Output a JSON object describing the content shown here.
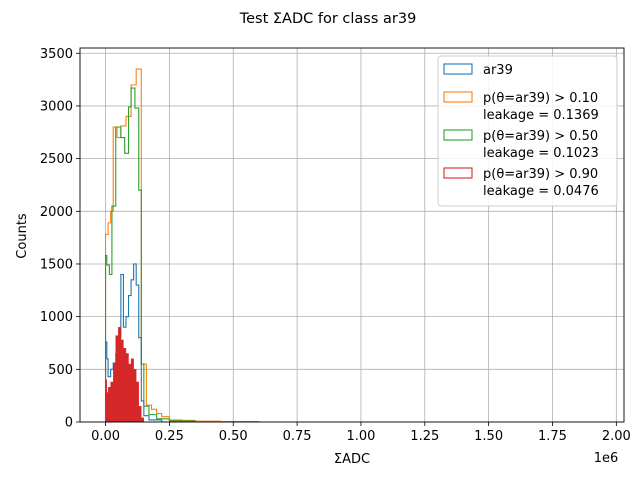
{
  "chart_data": {
    "type": "histogram",
    "title": "Test ΣADC for class ar39",
    "xlabel": "ΣADC",
    "ylabel": "Counts",
    "x_offset_label": "1e6",
    "xlim": [
      -0.1,
      2.03
    ],
    "ylim": [
      0,
      3550
    ],
    "x_ticks": [
      0.0,
      0.25,
      0.5,
      0.75,
      1.0,
      1.25,
      1.5,
      1.75,
      2.0
    ],
    "x_tick_labels": [
      "0.00",
      "0.25",
      "0.50",
      "0.75",
      "1.00",
      "1.25",
      "1.50",
      "1.75",
      "2.00"
    ],
    "y_ticks": [
      0,
      500,
      1000,
      1500,
      2000,
      2500,
      3000,
      3500
    ],
    "y_tick_labels": [
      "0",
      "500",
      "1000",
      "1500",
      "2000",
      "2500",
      "3000",
      "3500"
    ],
    "grid": true,
    "legend_position": "top-right",
    "series": [
      {
        "name": "p(θ=ar39) > 0.10",
        "legend_line1": "p(θ=ar39) > 0.10",
        "legend_line2": "leakage = 0.1369",
        "color": "#ff7f0e",
        "style": "step",
        "bins": [
          [
            0.0,
            0.01,
            1780
          ],
          [
            0.01,
            0.02,
            1890
          ],
          [
            0.02,
            0.03,
            2000
          ],
          [
            0.03,
            0.045,
            2800
          ],
          [
            0.045,
            0.06,
            2700
          ],
          [
            0.06,
            0.08,
            2810
          ],
          [
            0.08,
            0.1,
            2900
          ],
          [
            0.1,
            0.12,
            3200
          ],
          [
            0.12,
            0.14,
            3350
          ],
          [
            0.14,
            0.16,
            550
          ],
          [
            0.16,
            0.18,
            160
          ],
          [
            0.18,
            0.2,
            120
          ],
          [
            0.2,
            0.22,
            80
          ],
          [
            0.22,
            0.25,
            50
          ],
          [
            0.25,
            0.3,
            20
          ],
          [
            0.3,
            0.35,
            15
          ],
          [
            0.35,
            0.45,
            8
          ],
          [
            0.45,
            0.6,
            4
          ]
        ]
      },
      {
        "name": "p(θ=ar39) > 0.50",
        "legend_line1": "p(θ=ar39) > 0.50",
        "legend_line2": "leakage = 0.1023",
        "color": "#2ca02c",
        "style": "step",
        "bins": [
          [
            0.0,
            0.005,
            1580
          ],
          [
            0.005,
            0.015,
            1490
          ],
          [
            0.015,
            0.025,
            1400
          ],
          [
            0.025,
            0.04,
            2050
          ],
          [
            0.04,
            0.06,
            2800
          ],
          [
            0.06,
            0.075,
            2700
          ],
          [
            0.075,
            0.09,
            2550
          ],
          [
            0.09,
            0.1,
            2990
          ],
          [
            0.1,
            0.115,
            3170
          ],
          [
            0.115,
            0.13,
            2980
          ],
          [
            0.13,
            0.14,
            2200
          ],
          [
            0.14,
            0.15,
            550
          ],
          [
            0.15,
            0.17,
            150
          ],
          [
            0.17,
            0.2,
            70
          ],
          [
            0.2,
            0.25,
            30
          ],
          [
            0.25,
            0.35,
            10
          ]
        ]
      },
      {
        "name": "ar39",
        "legend_line1": "ar39",
        "legend_line2": "",
        "color": "#1f77b4",
        "style": "step",
        "bins": [
          [
            0.0,
            0.005,
            760
          ],
          [
            0.005,
            0.01,
            600
          ],
          [
            0.01,
            0.02,
            430
          ],
          [
            0.02,
            0.03,
            500
          ],
          [
            0.03,
            0.04,
            560
          ],
          [
            0.04,
            0.05,
            650
          ],
          [
            0.05,
            0.06,
            800
          ],
          [
            0.06,
            0.07,
            1400
          ],
          [
            0.07,
            0.08,
            900
          ],
          [
            0.08,
            0.09,
            1000
          ],
          [
            0.09,
            0.1,
            1200
          ],
          [
            0.1,
            0.11,
            1350
          ],
          [
            0.11,
            0.12,
            1500
          ],
          [
            0.12,
            0.13,
            1300
          ],
          [
            0.13,
            0.14,
            800
          ],
          [
            0.14,
            0.15,
            200
          ],
          [
            0.15,
            0.17,
            60
          ],
          [
            0.17,
            0.22,
            20
          ]
        ]
      },
      {
        "name": "p(θ=ar39) > 0.90",
        "legend_line1": "p(θ=ar39) > 0.90",
        "legend_line2": "leakage = 0.0476",
        "color": "#d62728",
        "style": "filled",
        "bins": [
          [
            0.0,
            0.005,
            400
          ],
          [
            0.005,
            0.01,
            280
          ],
          [
            0.01,
            0.02,
            330
          ],
          [
            0.02,
            0.03,
            380
          ],
          [
            0.03,
            0.04,
            560
          ],
          [
            0.04,
            0.05,
            820
          ],
          [
            0.05,
            0.06,
            900
          ],
          [
            0.06,
            0.07,
            780
          ],
          [
            0.07,
            0.08,
            700
          ],
          [
            0.08,
            0.09,
            650
          ],
          [
            0.09,
            0.1,
            550
          ],
          [
            0.1,
            0.11,
            600
          ],
          [
            0.11,
            0.12,
            500
          ],
          [
            0.12,
            0.13,
            380
          ],
          [
            0.13,
            0.14,
            150
          ],
          [
            0.14,
            0.15,
            40
          ]
        ]
      }
    ],
    "legend_order": [
      "ar39",
      "p(θ=ar39) > 0.10",
      "p(θ=ar39) > 0.50",
      "p(θ=ar39) > 0.90"
    ]
  }
}
